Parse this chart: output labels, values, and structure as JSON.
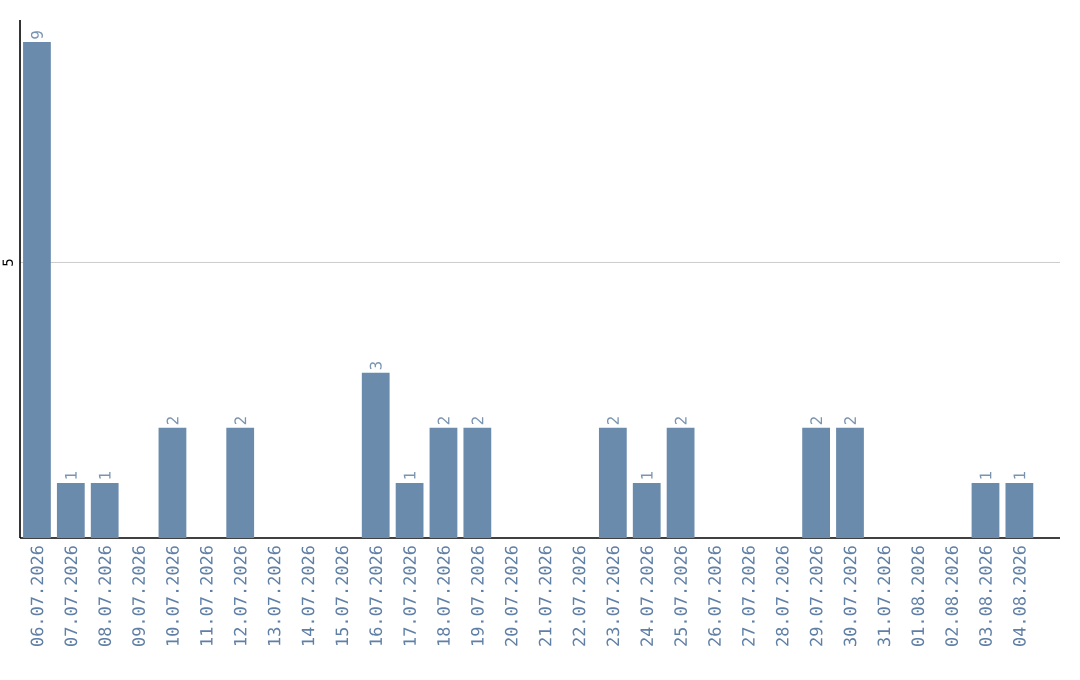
{
  "chart_data": {
    "type": "bar",
    "categories": [
      "06.07.2026",
      "07.07.2026",
      "08.07.2026",
      "09.07.2026",
      "10.07.2026",
      "11.07.2026",
      "12.07.2026",
      "13.07.2026",
      "14.07.2026",
      "15.07.2026",
      "16.07.2026",
      "17.07.2026",
      "18.07.2026",
      "19.07.2026",
      "20.07.2026",
      "21.07.2026",
      "22.07.2026",
      "23.07.2026",
      "24.07.2026",
      "25.07.2026",
      "26.07.2026",
      "27.07.2026",
      "28.07.2026",
      "29.07.2026",
      "30.07.2026",
      "31.07.2026",
      "01.08.2026",
      "02.08.2026",
      "03.08.2026",
      "04.08.2026"
    ],
    "values": [
      9,
      1,
      1,
      0,
      2,
      0,
      2,
      0,
      0,
      0,
      3,
      1,
      2,
      2,
      0,
      0,
      0,
      2,
      1,
      2,
      0,
      0,
      0,
      2,
      2,
      0,
      0,
      0,
      1,
      1
    ],
    "value_labels": [
      "9",
      "1",
      "1",
      null,
      "2",
      null,
      "2",
      null,
      null,
      null,
      "3",
      "1",
      "2",
      "2",
      null,
      null,
      null,
      "2",
      "1",
      "2",
      null,
      null,
      null,
      "2",
      "2",
      null,
      null,
      null,
      "1",
      "1"
    ],
    "color": "#6a8bab",
    "ylim": [
      0,
      9.4
    ],
    "yticks": [
      5
    ],
    "grid": "y"
  }
}
